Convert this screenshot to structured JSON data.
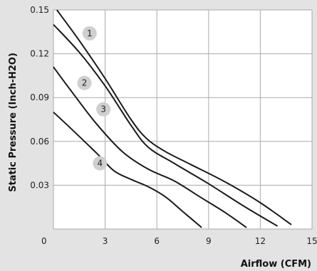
{
  "chart_data": {
    "type": "line",
    "xlabel": "Airflow (CFM)",
    "ylabel": "Static Pressure (Inch-H2O)",
    "xlim": [
      0,
      15
    ],
    "ylim": [
      0,
      0.15
    ],
    "x_ticks": [
      "0",
      "3",
      "6",
      "9",
      "12",
      "15"
    ],
    "y_ticks": [
      "0.03",
      "0.06",
      "0.09",
      "0.12",
      "0.15"
    ],
    "grid": true,
    "series": [
      {
        "name": "1",
        "points": [
          [
            0.2,
            0.15
          ],
          [
            1.5,
            0.129
          ],
          [
            3.0,
            0.103
          ],
          [
            4.5,
            0.075
          ],
          [
            5.4,
            0.062
          ],
          [
            6.5,
            0.053
          ],
          [
            8.0,
            0.044
          ],
          [
            10.0,
            0.032
          ],
          [
            12.0,
            0.018
          ],
          [
            13.8,
            0.003
          ]
        ]
      },
      {
        "name": "2",
        "points": [
          [
            0.0,
            0.14
          ],
          [
            1.5,
            0.121
          ],
          [
            3.0,
            0.098
          ],
          [
            4.5,
            0.071
          ],
          [
            5.5,
            0.056
          ],
          [
            7.0,
            0.045
          ],
          [
            9.0,
            0.031
          ],
          [
            11.0,
            0.016
          ],
          [
            13.0,
            0.002
          ]
        ]
      },
      {
        "name": "3",
        "points": [
          [
            0.0,
            0.111
          ],
          [
            1.0,
            0.095
          ],
          [
            2.5,
            0.072
          ],
          [
            4.0,
            0.053
          ],
          [
            5.5,
            0.041
          ],
          [
            7.0,
            0.033
          ],
          [
            8.5,
            0.022
          ],
          [
            10.0,
            0.011
          ],
          [
            11.2,
            0.001
          ]
        ]
      },
      {
        "name": "4",
        "points": [
          [
            0.0,
            0.08
          ],
          [
            1.0,
            0.069
          ],
          [
            2.5,
            0.052
          ],
          [
            3.5,
            0.04
          ],
          [
            4.5,
            0.034
          ],
          [
            5.5,
            0.029
          ],
          [
            6.5,
            0.022
          ],
          [
            7.5,
            0.012
          ],
          [
            8.6,
            0.001
          ]
        ]
      }
    ],
    "annotations": [
      {
        "text": "1",
        "x": 2.1,
        "y": 0.134
      },
      {
        "text": "2",
        "x": 1.8,
        "y": 0.1
      },
      {
        "text": "3",
        "x": 2.9,
        "y": 0.082
      },
      {
        "text": "4",
        "x": 2.7,
        "y": 0.045
      }
    ]
  },
  "colors": {
    "frame_background": "#e3e3e3",
    "plot_background": "#ffffff",
    "grid": "#aaaaaa",
    "curve": "#1a1a1a",
    "badge": "#cfcfcf"
  }
}
